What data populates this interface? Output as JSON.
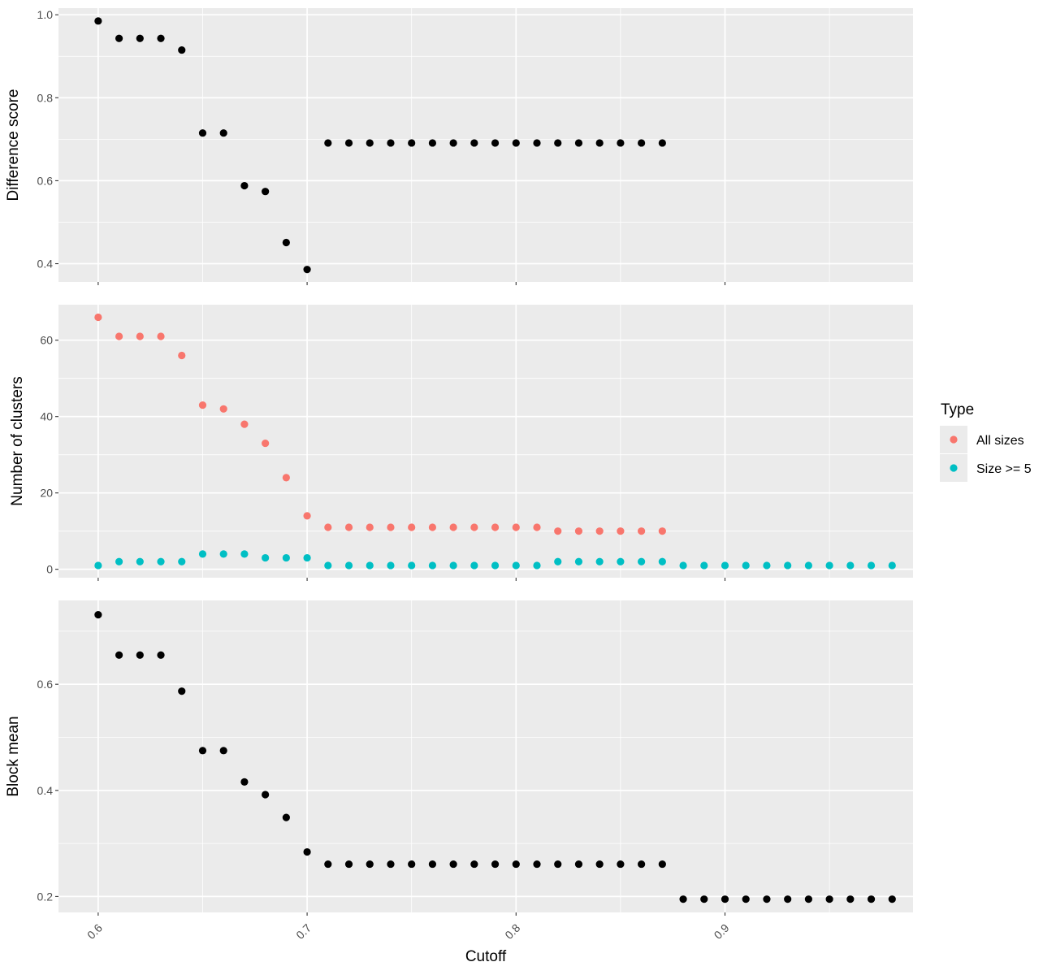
{
  "chart_data": {
    "type": "scatter",
    "xlabel": "Cutoff",
    "xlim": [
      0.581,
      0.99
    ],
    "xticks": [
      0.6,
      0.7,
      0.8,
      0.9
    ],
    "xtick_labels": [
      "0.6",
      "0.7",
      "0.8",
      "0.9"
    ],
    "xtick_angle": 45,
    "grid": true,
    "panel_background": "#ebebeb",
    "grid_color": "#ffffff",
    "legend": {
      "title": "Type",
      "placement": "right",
      "entries": [
        {
          "label": "All sizes",
          "color": "#F8766D"
        },
        {
          "label": "Size >= 5",
          "color": "#00BFC4"
        }
      ]
    },
    "panels": [
      {
        "ylabel": "Difference score",
        "ylim": [
          0.356,
          1.016
        ],
        "yticks": [
          0.4,
          0.6,
          0.8,
          1.0
        ],
        "ytick_labels": [
          "0.4",
          "0.6",
          "0.8",
          "1.0"
        ],
        "series": [
          {
            "color": "#000000",
            "x": [
              0.6,
              0.61,
              0.62,
              0.63,
              0.64,
              0.65,
              0.66,
              0.67,
              0.68,
              0.69,
              0.7,
              0.71,
              0.72,
              0.73,
              0.74,
              0.75,
              0.76,
              0.77,
              0.78,
              0.79,
              0.8,
              0.81,
              0.82,
              0.83,
              0.84,
              0.85,
              0.86,
              0.87
            ],
            "y": [
              0.985,
              0.943,
              0.943,
              0.943,
              0.915,
              0.715,
              0.715,
              0.588,
              0.574,
              0.451,
              0.386,
              0.691,
              0.691,
              0.691,
              0.691,
              0.691,
              0.691,
              0.691,
              0.691,
              0.691,
              0.691,
              0.691,
              0.691,
              0.691,
              0.691,
              0.691,
              0.691,
              0.691
            ]
          }
        ]
      },
      {
        "ylabel": "Number of clusters",
        "ylim": [
          -2.2,
          69.3
        ],
        "yticks": [
          0,
          20,
          40,
          60
        ],
        "ytick_labels": [
          "0",
          "20",
          "40",
          "60"
        ],
        "series": [
          {
            "name": "All sizes",
            "color": "#F8766D",
            "x": [
              0.6,
              0.61,
              0.62,
              0.63,
              0.64,
              0.65,
              0.66,
              0.67,
              0.68,
              0.69,
              0.7,
              0.71,
              0.72,
              0.73,
              0.74,
              0.75,
              0.76,
              0.77,
              0.78,
              0.79,
              0.8,
              0.81,
              0.82,
              0.83,
              0.84,
              0.85,
              0.86,
              0.87
            ],
            "y": [
              66,
              61,
              61,
              61,
              56,
              43,
              42,
              38,
              33,
              24,
              14,
              11,
              11,
              11,
              11,
              11,
              11,
              11,
              11,
              11,
              11,
              11,
              10,
              10,
              10,
              10,
              10,
              10
            ]
          },
          {
            "name": "Size >= 5",
            "color": "#00BFC4",
            "x": [
              0.6,
              0.61,
              0.62,
              0.63,
              0.64,
              0.65,
              0.66,
              0.67,
              0.68,
              0.69,
              0.7,
              0.71,
              0.72,
              0.73,
              0.74,
              0.75,
              0.76,
              0.77,
              0.78,
              0.79,
              0.8,
              0.81,
              0.82,
              0.83,
              0.84,
              0.85,
              0.86,
              0.87,
              0.88,
              0.89,
              0.9,
              0.91,
              0.92,
              0.93,
              0.94,
              0.95,
              0.96,
              0.97,
              0.98
            ],
            "y": [
              1,
              2,
              2,
              2,
              2,
              4,
              4,
              4,
              3,
              3,
              3,
              1,
              1,
              1,
              1,
              1,
              1,
              1,
              1,
              1,
              1,
              1,
              2,
              2,
              2,
              2,
              2,
              2,
              1,
              1,
              1,
              1,
              1,
              1,
              1,
              1,
              1,
              1,
              1
            ]
          }
        ]
      },
      {
        "ylabel": "Block mean",
        "ylim": [
          0.17,
          0.758
        ],
        "yticks": [
          0.2,
          0.4,
          0.6
        ],
        "ytick_labels": [
          "0.2",
          "0.4",
          "0.6"
        ],
        "series": [
          {
            "color": "#000000",
            "x": [
              0.6,
              0.61,
              0.62,
              0.63,
              0.64,
              0.65,
              0.66,
              0.67,
              0.68,
              0.69,
              0.7,
              0.71,
              0.72,
              0.73,
              0.74,
              0.75,
              0.76,
              0.77,
              0.78,
              0.79,
              0.8,
              0.81,
              0.82,
              0.83,
              0.84,
              0.85,
              0.86,
              0.87,
              0.88,
              0.89,
              0.9,
              0.91,
              0.92,
              0.93,
              0.94,
              0.95,
              0.96,
              0.97,
              0.98
            ],
            "y": [
              0.731,
              0.655,
              0.655,
              0.655,
              0.587,
              0.475,
              0.475,
              0.416,
              0.392,
              0.349,
              0.284,
              0.261,
              0.261,
              0.261,
              0.261,
              0.261,
              0.261,
              0.261,
              0.261,
              0.261,
              0.261,
              0.261,
              0.261,
              0.261,
              0.261,
              0.261,
              0.261,
              0.261,
              0.195,
              0.195,
              0.195,
              0.195,
              0.195,
              0.195,
              0.195,
              0.195,
              0.195,
              0.195,
              0.195
            ]
          }
        ]
      }
    ]
  }
}
